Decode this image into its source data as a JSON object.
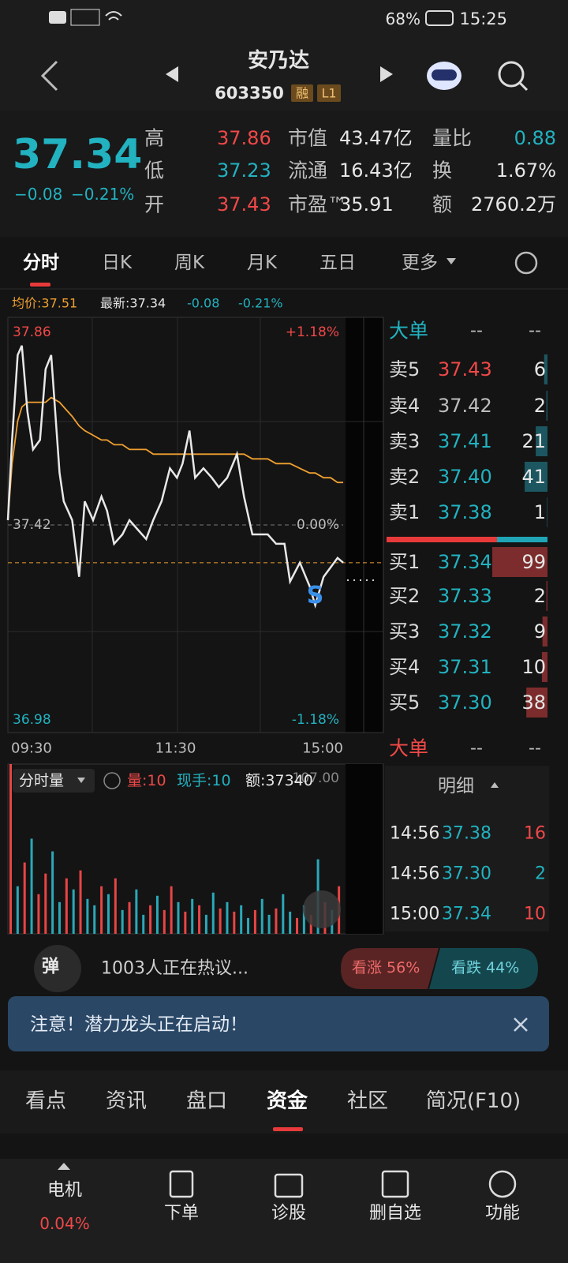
{
  "status_bar": {
    "battery": "68%",
    "time": "15:25"
  },
  "header": {
    "name": "安乃达",
    "code": "603350",
    "badges": [
      "融",
      "L1"
    ]
  },
  "quote": {
    "price": "37.34",
    "change": "−0.08",
    "change_pct": "−0.21%",
    "stats": [
      {
        "label": "高",
        "value": "37.86"
      },
      {
        "label": "低",
        "value": "37.23"
      },
      {
        "label": "开",
        "value": "37.43"
      },
      {
        "label": "市值",
        "value": "43.47亿"
      },
      {
        "label": "流通",
        "value": "16.43亿"
      },
      {
        "label": "市盈™",
        "value": "35.91"
      },
      {
        "label": "量比",
        "value": "0.88"
      },
      {
        "label": "换",
        "value": "1.67%"
      },
      {
        "label": "额",
        "value": "2760.2万"
      }
    ]
  },
  "tabs": [
    "分时",
    "日K",
    "周K",
    "月K",
    "五日",
    "更多"
  ],
  "info_line": {
    "avg": "均价:37.51",
    "latest": "最新:37.34",
    "change": "-0.08",
    "change_pct": "-0.21%"
  },
  "chart_data": [
    {
      "type": "line",
      "x": [
        0,
        3,
        7,
        10,
        14,
        18,
        23,
        27,
        31,
        37,
        40,
        46,
        51,
        55,
        61,
        67,
        71,
        76,
        82,
        87,
        93,
        99,
        104,
        110,
        116,
        121,
        125,
        130,
        134,
        140,
        146,
        151,
        157,
        164,
        169,
        175,
        181,
        186,
        192,
        198,
        202,
        209,
        216,
        220,
        226,
        231,
        236,
        240
      ],
      "series": [
        {
          "color": "#e8e8e8",
          "values": [
            37.43,
            37.6,
            37.78,
            37.8,
            37.66,
            37.58,
            37.6,
            37.75,
            37.78,
            37.53,
            37.47,
            37.43,
            37.31,
            37.47,
            37.43,
            37.48,
            37.45,
            37.38,
            37.4,
            37.43,
            37.41,
            37.39,
            37.43,
            37.47,
            37.54,
            37.52,
            37.55,
            37.62,
            37.52,
            37.54,
            37.52,
            37.5,
            37.52,
            37.57,
            37.48,
            37.4,
            37.4,
            37.4,
            37.38,
            37.38,
            37.3,
            37.34,
            37.29,
            37.25,
            37.31,
            37.33,
            37.35,
            37.34
          ]
        },
        {
          "color": "#f0a030",
          "values": [
            37.43,
            37.55,
            37.64,
            37.67,
            37.68,
            37.68,
            37.68,
            37.68,
            37.69,
            37.68,
            37.67,
            37.65,
            37.63,
            37.62,
            37.61,
            37.6,
            37.6,
            37.59,
            37.59,
            37.58,
            37.58,
            37.58,
            37.57,
            37.57,
            37.57,
            37.57,
            37.57,
            37.57,
            37.57,
            37.57,
            37.57,
            37.57,
            37.57,
            37.57,
            37.57,
            37.56,
            37.56,
            37.56,
            37.55,
            37.55,
            37.55,
            37.54,
            37.53,
            37.53,
            37.52,
            37.52,
            37.51,
            37.51
          ]
        }
      ],
      "xlim": [
        0,
        240
      ],
      "xticks": [
        {
          "value": 0,
          "label": "09:30"
        },
        {
          "value": 120,
          "label": "11:30"
        },
        {
          "value": 240,
          "label": "15:00"
        }
      ],
      "ylim": [
        36.98,
        37.86
      ],
      "yticks": [
        36.98,
        37.42,
        37.86
      ],
      "y2lim": [
        -1.18,
        1.18
      ],
      "y2ticks": [
        {
          "value": -1.18,
          "label": "-1.18%"
        },
        {
          "value": 0,
          "label": "0.00%"
        },
        {
          "value": 1.18,
          "label": "+1.18%"
        }
      ],
      "annotations": [
        {
          "text": "S",
          "x": 220
        }
      ]
    },
    {
      "type": "bar",
      "title": "分时量",
      "stats": [
        "量:10",
        "现手:10",
        "额:37340"
      ],
      "x": [
        0,
        5,
        10,
        15,
        20,
        25,
        30,
        35,
        40,
        45,
        50,
        55,
        60,
        65,
        70,
        75,
        80,
        85,
        90,
        95,
        100,
        105,
        110,
        115,
        120,
        125,
        130,
        135,
        140,
        145,
        150,
        155,
        160,
        165,
        170,
        175,
        180,
        185,
        190,
        195,
        200,
        205,
        210,
        215,
        220,
        225,
        230,
        235
      ],
      "values": [
        107,
        30,
        45,
        60,
        25,
        38,
        52,
        20,
        35,
        28,
        40,
        22,
        18,
        30,
        25,
        35,
        15,
        20,
        28,
        12,
        18,
        24,
        15,
        30,
        20,
        14,
        22,
        18,
        12,
        26,
        16,
        20,
        14,
        18,
        10,
        15,
        22,
        12,
        16,
        25,
        14,
        10,
        18,
        12,
        47,
        20,
        15,
        30
      ],
      "colors": [
        "#e84545",
        "#2aa9b8",
        "#e84545",
        "#2aa9b8",
        "#e84545",
        "#e84545",
        "#2aa9b8",
        "#2aa9b8",
        "#e84545",
        "#2aa9b8",
        "#e84545",
        "#2aa9b8",
        "#2aa9b8",
        "#e84545",
        "#2aa9b8",
        "#e84545",
        "#2aa9b8",
        "#e84545",
        "#2aa9b8",
        "#2aa9b8",
        "#e84545",
        "#2aa9b8",
        "#e84545",
        "#e84545",
        "#2aa9b8",
        "#e84545",
        "#2aa9b8",
        "#e84545",
        "#2aa9b8",
        "#2aa9b8",
        "#e84545",
        "#2aa9b8",
        "#e84545",
        "#2aa9b8",
        "#2aa9b8",
        "#e84545",
        "#2aa9b8",
        "#2aa9b8",
        "#e84545",
        "#2aa9b8",
        "#2aa9b8",
        "#e84545",
        "#2aa9b8",
        "#e84545",
        "#2aa9b8",
        "#e84545",
        "#2aa9b8",
        "#e84545"
      ],
      "xlim": [
        0,
        240
      ],
      "ylim": [
        0,
        107
      ],
      "yticks": [
        {
          "value": 107,
          "label": "107.00"
        }
      ]
    }
  ],
  "order_book": {
    "title": "大单",
    "placeholders": [
      "--",
      "--"
    ],
    "asks": [
      {
        "label": "卖5",
        "price": "37.43",
        "volume": 6
      },
      {
        "label": "卖4",
        "price": "37.42",
        "volume": 2
      },
      {
        "label": "卖3",
        "price": "37.41",
        "volume": 21
      },
      {
        "label": "卖2",
        "price": "37.40",
        "volume": 41
      },
      {
        "label": "卖1",
        "price": "37.38",
        "volume": 1
      }
    ],
    "bids": [
      {
        "label": "买1",
        "price": "37.34",
        "volume": 99
      },
      {
        "label": "买2",
        "price": "37.33",
        "volume": 2
      },
      {
        "label": "买3",
        "price": "37.32",
        "volume": 9
      },
      {
        "label": "买4",
        "price": "37.31",
        "volume": 10
      },
      {
        "label": "买5",
        "price": "37.30",
        "volume": 38
      }
    ]
  },
  "trades": {
    "big_order": "大单",
    "placeholders": [
      "--",
      "--"
    ],
    "title": "明细",
    "rows": [
      {
        "time": "14:56",
        "price": "37.38",
        "volume": 16
      },
      {
        "time": "14:56",
        "price": "37.30",
        "volume": 2
      },
      {
        "time": "15:00",
        "price": "37.34",
        "volume": 10
      }
    ]
  },
  "sentiment": {
    "badge": "弹",
    "discussion": "1003人正在热议...",
    "bull": "看涨 56%",
    "bear": "看跌 44%"
  },
  "notice": "注意！潜力龙头正在启动！",
  "bottom_tabs": [
    "看点",
    "资讯",
    "盘口",
    "资金",
    "社区",
    "简况(F10)"
  ],
  "nav": [
    {
      "label": "电机",
      "sub": "0.04%"
    },
    {
      "label": "下单"
    },
    {
      "label": "诊股"
    },
    {
      "label": "删自选"
    },
    {
      "label": "功能"
    }
  ]
}
